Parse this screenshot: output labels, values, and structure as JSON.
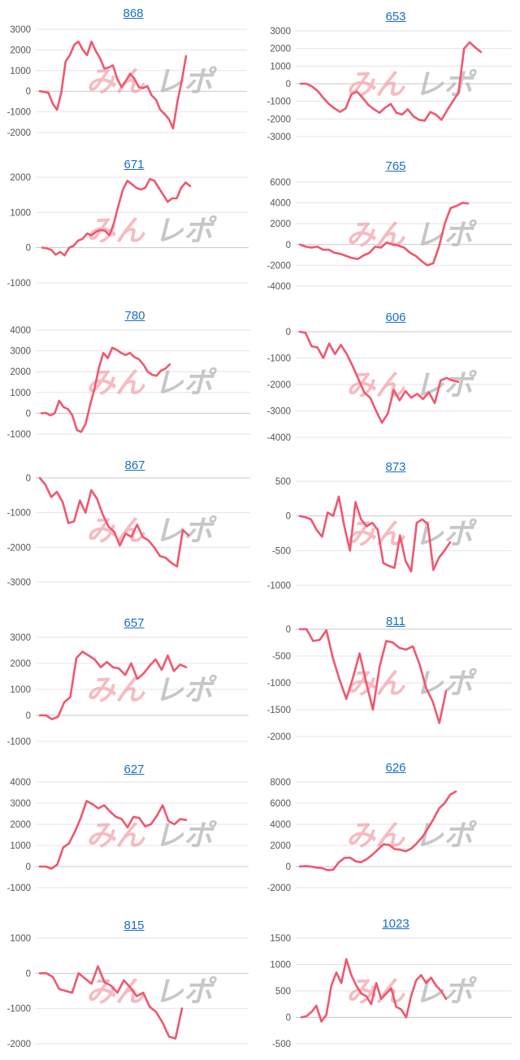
{
  "watermark": {
    "part_a": "みん",
    "part_b": "レポ",
    "color_a": "#f3a5ad",
    "color_b": "#b5b5b5"
  },
  "colors": {
    "line": "#f0576f",
    "title_link": "#1a6fc9"
  },
  "chart_data": [
    {
      "type": "line",
      "title": "868",
      "ylim": [
        -2000,
        3000
      ],
      "yticks": [
        3000,
        2000,
        1000,
        0,
        -1000,
        -2000
      ],
      "values": [
        0,
        -30,
        -80,
        -600,
        -900,
        -50,
        1450,
        1750,
        2250,
        2400,
        2000,
        1750,
        2400,
        1950,
        1600,
        1100,
        1150,
        1250,
        600,
        200,
        500,
        850,
        600,
        200,
        150,
        250,
        -200,
        -400,
        -900,
        -1100,
        -1350,
        -1800,
        -500,
        500,
        1700
      ]
    },
    {
      "type": "line",
      "title": "653",
      "ylim": [
        -3000,
        3000
      ],
      "yticks": [
        3000,
        2000,
        1000,
        0,
        -1000,
        -2000,
        -3000
      ],
      "values": [
        0,
        0,
        -150,
        -400,
        -800,
        -1150,
        -1400,
        -1600,
        -1400,
        -600,
        -450,
        -800,
        -1200,
        -1450,
        -1650,
        -1350,
        -1150,
        -1650,
        -1750,
        -1450,
        -1850,
        -2050,
        -2100,
        -1600,
        -1750,
        -2050,
        -1500,
        -1000,
        -500,
        2000,
        2350,
        2050,
        1800
      ]
    },
    {
      "type": "line",
      "title": "671",
      "ylim": [
        -1000,
        2000
      ],
      "yticks": [
        2000,
        1000,
        0,
        -1000
      ],
      "values": [
        0,
        -20,
        -60,
        -200,
        -120,
        -220,
        0,
        50,
        200,
        250,
        400,
        350,
        450,
        500,
        480,
        350,
        700,
        1200,
        1650,
        1900,
        1800,
        1700,
        1650,
        1700,
        1950,
        1900,
        1700,
        1500,
        1300,
        1400,
        1400,
        1700,
        1850,
        1750
      ]
    },
    {
      "type": "line",
      "title": "765",
      "ylim": [
        -4000,
        6000
      ],
      "yticks": [
        6000,
        4000,
        2000,
        0,
        -2000,
        -4000
      ],
      "values": [
        0,
        -200,
        -300,
        -200,
        -500,
        -500,
        -800,
        -900,
        -1100,
        -1300,
        -1400,
        -1050,
        -800,
        -200,
        -300,
        200,
        0,
        -100,
        -300,
        -800,
        -1100,
        -1600,
        -2000,
        -1800,
        -200,
        2000,
        3500,
        3700,
        4000,
        3950
      ]
    },
    {
      "type": "line",
      "title": "780",
      "ylim": [
        -1000,
        4000
      ],
      "yticks": [
        4000,
        3000,
        2000,
        1000,
        0,
        -1000
      ],
      "values": [
        0,
        20,
        -100,
        0,
        600,
        300,
        200,
        -100,
        -800,
        -900,
        -500,
        400,
        1200,
        2200,
        2900,
        2650,
        3150,
        3050,
        2900,
        2800,
        2900,
        2700,
        2600,
        2350,
        2000,
        1850,
        1800,
        2050,
        2150,
        2350
      ]
    },
    {
      "type": "line",
      "title": "606",
      "ylim": [
        -4000,
        0
      ],
      "yticks": [
        0,
        -1000,
        -2000,
        -3000,
        -4000
      ],
      "values": [
        0,
        -50,
        -550,
        -600,
        -1000,
        -450,
        -850,
        -500,
        -850,
        -1300,
        -1800,
        -2300,
        -2500,
        -3000,
        -3450,
        -3100,
        -2200,
        -2600,
        -2250,
        -2500,
        -2350,
        -2550,
        -2300,
        -2700,
        -1850,
        -1750,
        -1850,
        -1900
      ]
    },
    {
      "type": "line",
      "title": "867",
      "ylim": [
        -3000,
        0
      ],
      "yticks": [
        0,
        -1000,
        -2000,
        -3000
      ],
      "values": [
        0,
        -200,
        -550,
        -400,
        -700,
        -1300,
        -1250,
        -650,
        -1000,
        -350,
        -600,
        -1050,
        -1400,
        -1550,
        -1950,
        -1600,
        -1700,
        -1350,
        -1700,
        -1800,
        -2000,
        -2250,
        -2300,
        -2450,
        -2550,
        -1500,
        -1650
      ]
    },
    {
      "type": "line",
      "title": "873",
      "ylim": [
        -1000,
        500
      ],
      "yticks": [
        500,
        0,
        -500,
        -1000
      ],
      "values": [
        0,
        -20,
        -50,
        -200,
        -300,
        50,
        0,
        280,
        -150,
        -500,
        200,
        -50,
        -150,
        -100,
        -200,
        -680,
        -720,
        -750,
        -280,
        -650,
        -800,
        -100,
        -50,
        -120,
        -780,
        -600,
        -500,
        -380
      ]
    },
    {
      "type": "line",
      "title": "657",
      "ylim": [
        -1000,
        3000
      ],
      "yticks": [
        3000,
        2000,
        1000,
        0,
        -1000
      ],
      "values": [
        0,
        0,
        -150,
        -50,
        500,
        700,
        2200,
        2450,
        2300,
        2150,
        1850,
        2050,
        1850,
        1800,
        1550,
        2000,
        1400,
        1600,
        1900,
        2150,
        1750,
        2300,
        1700,
        1950,
        1850
      ]
    },
    {
      "type": "line",
      "title": "811",
      "ylim": [
        -2000,
        0
      ],
      "yticks": [
        0,
        -500,
        -1000,
        -1500,
        -2000
      ],
      "values": [
        0,
        0,
        -220,
        -200,
        -20,
        -550,
        -950,
        -1300,
        -900,
        -450,
        -1000,
        -1500,
        -700,
        -220,
        -250,
        -350,
        -380,
        -320,
        -650,
        -1100,
        -1350,
        -1750,
        -1150
      ]
    },
    {
      "type": "line",
      "title": "627",
      "ylim": [
        -1000,
        4000
      ],
      "yticks": [
        4000,
        3000,
        2000,
        1000,
        0,
        -1000
      ],
      "values": [
        0,
        0,
        -100,
        100,
        900,
        1100,
        1650,
        2300,
        3100,
        2950,
        2750,
        2900,
        2600,
        2350,
        2250,
        1850,
        2350,
        2300,
        1900,
        2000,
        2400,
        2900,
        2150,
        2000,
        2250,
        2200
      ]
    },
    {
      "type": "line",
      "title": "626",
      "ylim": [
        -2000,
        8000
      ],
      "yticks": [
        8000,
        6000,
        4000,
        2000,
        0,
        -2000
      ],
      "values": [
        0,
        50,
        0,
        -100,
        -150,
        -350,
        -300,
        400,
        800,
        850,
        500,
        400,
        700,
        1100,
        1600,
        2100,
        2050,
        1650,
        1600,
        1450,
        1700,
        2200,
        2800,
        3600,
        4500,
        5500,
        6000,
        6800,
        7100
      ]
    },
    {
      "type": "line",
      "title": "815",
      "ylim": [
        -2000,
        1000
      ],
      "yticks": [
        1000,
        0,
        -1000,
        -2000
      ],
      "values": [
        0,
        0,
        -100,
        -450,
        -500,
        -550,
        0,
        -150,
        -300,
        200,
        -250,
        -350,
        -550,
        -200,
        -400,
        -650,
        -550,
        -950,
        -1100,
        -1400,
        -1800,
        -1850,
        -1000
      ]
    },
    {
      "type": "line",
      "title": "1023",
      "ylim": [
        -500,
        1500
      ],
      "yticks": [
        1500,
        1000,
        500,
        0,
        -500
      ],
      "values": [
        0,
        20,
        100,
        220,
        -80,
        50,
        600,
        850,
        650,
        1100,
        800,
        600,
        450,
        400,
        250,
        650,
        350,
        450,
        550,
        200,
        150,
        0,
        400,
        700,
        800,
        650,
        750,
        600,
        500,
        350
      ]
    }
  ]
}
